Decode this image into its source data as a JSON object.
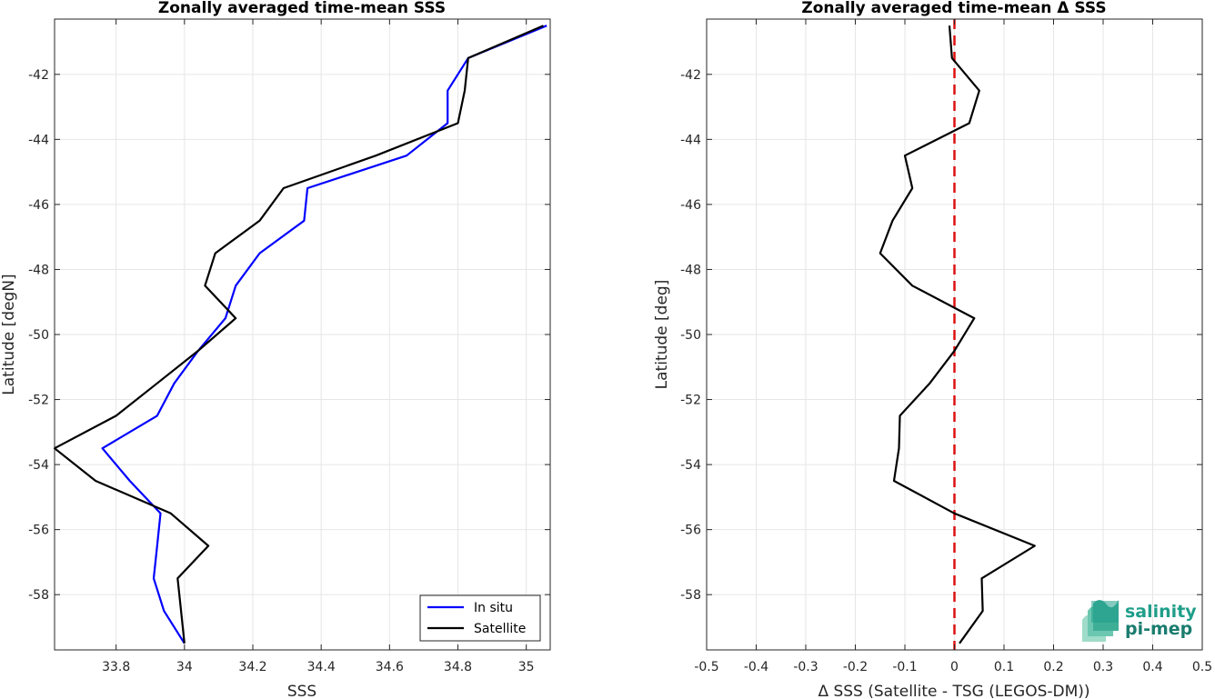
{
  "chart_data": [
    {
      "type": "line",
      "title": "Zonally averaged time-mean SSS",
      "xlabel": "SSS",
      "ylabel": "Latitude [degN]",
      "xlim": [
        33.62,
        35.07
      ],
      "ylim": [
        -59.7,
        -40.3
      ],
      "xticks": [
        33.8,
        34,
        34.2,
        34.4,
        34.6,
        34.8,
        35
      ],
      "xtick_labels": [
        "33.8",
        "34",
        "34.2",
        "34.4",
        "34.6",
        "34.8",
        "35"
      ],
      "yticks": [
        -42,
        -44,
        -46,
        -48,
        -50,
        -52,
        -54,
        -56,
        -58
      ],
      "ytick_labels": [
        "-42",
        "-44",
        "-46",
        "-48",
        "-50",
        "-52",
        "-54",
        "-56",
        "-58"
      ],
      "grid": true,
      "legend_position": "bottom-right",
      "series": [
        {
          "name": "In situ",
          "color": "#0000ff",
          "x": [
            35.06,
            34.83,
            34.77,
            34.77,
            34.65,
            34.36,
            34.35,
            34.22,
            34.15,
            34.12,
            34.04,
            33.97,
            33.92,
            33.76,
            33.84,
            33.93,
            33.92,
            33.91,
            33.94,
            34.0
          ],
          "y": [
            -40.5,
            -41.5,
            -42.5,
            -43.5,
            -44.5,
            -45.5,
            -46.5,
            -47.5,
            -48.5,
            -49.5,
            -50.5,
            -51.5,
            -52.5,
            -53.5,
            -54.5,
            -55.5,
            -56.5,
            -57.5,
            -58.5,
            -59.5
          ]
        },
        {
          "name": "Satellite",
          "color": "#000000",
          "x": [
            35.05,
            34.83,
            34.82,
            34.8,
            34.56,
            34.29,
            34.22,
            34.09,
            34.06,
            34.15,
            34.04,
            33.92,
            33.8,
            33.62,
            33.74,
            33.96,
            34.07,
            33.98,
            33.99,
            34.0
          ],
          "y": [
            -40.5,
            -41.5,
            -42.5,
            -43.5,
            -44.5,
            -45.5,
            -46.5,
            -47.5,
            -48.5,
            -49.5,
            -50.5,
            -51.5,
            -52.5,
            -53.5,
            -54.5,
            -55.5,
            -56.5,
            -57.5,
            -58.5,
            -59.5
          ]
        }
      ]
    },
    {
      "type": "line",
      "title": "Zonally averaged time-mean Δ SSS",
      "xlabel": "Δ SSS (Satellite - TSG (LEGOS-DM))",
      "ylabel": "Latitude [deg]",
      "xlim": [
        -0.5,
        0.5
      ],
      "ylim": [
        -59.7,
        -40.3
      ],
      "xticks": [
        -0.5,
        -0.4,
        -0.3,
        -0.2,
        -0.1,
        0,
        0.1,
        0.2,
        0.3,
        0.4,
        0.5
      ],
      "xtick_labels": [
        "-0.5",
        "-0.4",
        "-0.3",
        "-0.2",
        "-0.1",
        "0",
        "0.1",
        "0.2",
        "0.3",
        "0.4",
        "0.5"
      ],
      "yticks": [
        -42,
        -44,
        -46,
        -48,
        -50,
        -52,
        -54,
        -56,
        -58
      ],
      "ytick_labels": [
        "-42",
        "-44",
        "-46",
        "-48",
        "-50",
        "-52",
        "-54",
        "-56",
        "-58"
      ],
      "grid": true,
      "reference_line": {
        "x": 0,
        "color": "#dd1111",
        "style": "dashed"
      },
      "series": [
        {
          "color": "#000000",
          "x": [
            -0.01,
            -0.005,
            0.05,
            0.03,
            -0.1,
            -0.085,
            -0.125,
            -0.15,
            -0.085,
            0.04,
            0.0,
            -0.05,
            -0.11,
            -0.112,
            -0.122,
            0.0,
            0.162,
            0.055,
            0.057,
            0.01
          ],
          "y": [
            -40.5,
            -41.5,
            -42.5,
            -43.5,
            -44.5,
            -45.5,
            -46.5,
            -47.5,
            -48.5,
            -49.5,
            -50.5,
            -51.5,
            -52.5,
            -53.5,
            -54.5,
            -55.5,
            -56.5,
            -57.5,
            -58.5,
            -59.5
          ]
        }
      ]
    }
  ],
  "logo": {
    "line1": "salinity",
    "line2": "pi-mep"
  }
}
